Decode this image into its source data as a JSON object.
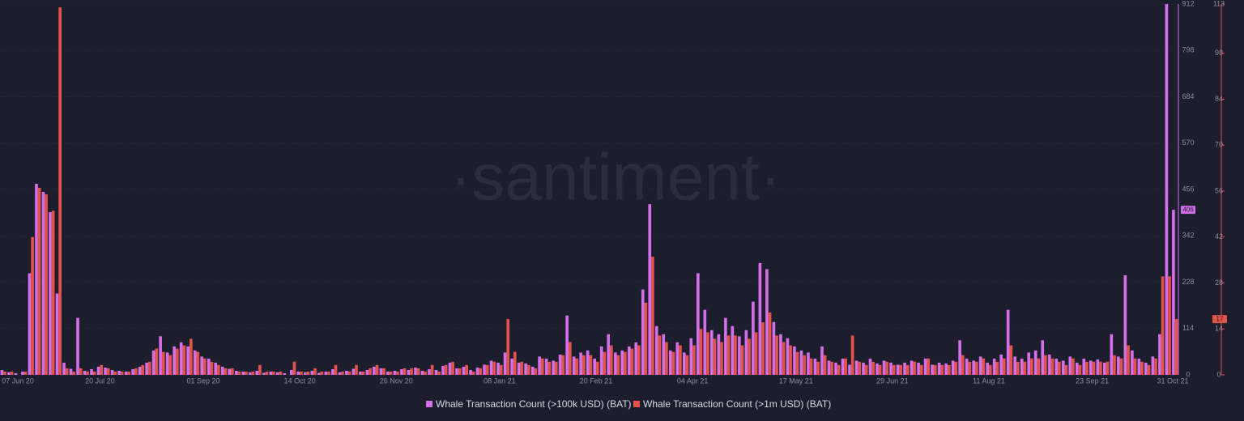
{
  "chart_data": {
    "type": "bar",
    "watermark": "·santiment·",
    "categories": [
      "07 Jun 20",
      null,
      null,
      null,
      null,
      null,
      null,
      null,
      null,
      null,
      null,
      null,
      null,
      null,
      "20 Jul 20",
      null,
      null,
      null,
      null,
      null,
      null,
      null,
      null,
      null,
      null,
      null,
      null,
      null,
      null,
      "01 Sep 20",
      null,
      null,
      null,
      null,
      null,
      null,
      null,
      null,
      null,
      null,
      null,
      null,
      null,
      "14 Oct 20",
      null,
      null,
      null,
      null,
      null,
      null,
      null,
      null,
      null,
      null,
      null,
      null,
      null,
      "26 Nov 20",
      null,
      null,
      null,
      null,
      null,
      null,
      null,
      null,
      null,
      null,
      null,
      null,
      null,
      null,
      "08 Jan 21",
      null,
      null,
      null,
      null,
      null,
      null,
      null,
      null,
      null,
      null,
      null,
      null,
      null,
      "20 Feb 21",
      null,
      null,
      null,
      null,
      null,
      null,
      null,
      null,
      null,
      null,
      null,
      null,
      null,
      "04 Apr 21",
      null,
      null,
      null,
      null,
      null,
      null,
      null,
      null,
      null,
      null,
      null,
      null,
      null,
      null,
      "17 May 21",
      null,
      null,
      null,
      null,
      null,
      null,
      null,
      null,
      null,
      null,
      null,
      null,
      null,
      "29 Jun 21",
      null,
      null,
      null,
      null,
      null,
      null,
      null,
      null,
      null,
      null,
      null,
      null,
      null,
      "11 Aug 21",
      null,
      null,
      null,
      null,
      null,
      null,
      null,
      null,
      null,
      null,
      null,
      null,
      null,
      null,
      "23 Sep 21",
      null,
      null,
      null,
      null,
      null,
      null,
      null,
      null,
      null,
      null,
      null,
      "31 Oct 21"
    ],
    "series": [
      {
        "name": "Whale Transaction Count (>100k USD) (BAT)",
        "color": "#d36fe8",
        "values": [
          12,
          6,
          4,
          8,
          250,
          470,
          450,
          400,
          200,
          30,
          15,
          140,
          10,
          14,
          20,
          18,
          12,
          10,
          8,
          14,
          20,
          30,
          60,
          95,
          55,
          70,
          80,
          70,
          60,
          45,
          40,
          30,
          20,
          15,
          10,
          8,
          6,
          10,
          5,
          8,
          6,
          4,
          12,
          8,
          6,
          10,
          5,
          8,
          14,
          6,
          10,
          15,
          8,
          12,
          20,
          16,
          8,
          10,
          14,
          12,
          18,
          10,
          14,
          12,
          22,
          30,
          16,
          20,
          12,
          18,
          25,
          35,
          30,
          55,
          40,
          30,
          28,
          20,
          45,
          40,
          35,
          50,
          146,
          45,
          55,
          60,
          40,
          70,
          100,
          55,
          60,
          70,
          80,
          210,
          420,
          120,
          100,
          60,
          80,
          55,
          90,
          250,
          160,
          110,
          100,
          140,
          120,
          95,
          110,
          180,
          275,
          260,
          130,
          100,
          90,
          70,
          60,
          55,
          40,
          70,
          35,
          30,
          40,
          25,
          35,
          30,
          40,
          28,
          35,
          30,
          25,
          30,
          35,
          30,
          40,
          25,
          30,
          28,
          35,
          85,
          40,
          35,
          45,
          30,
          40,
          50,
          160,
          45,
          40,
          55,
          60,
          85,
          50,
          40,
          35,
          45,
          30,
          40,
          35,
          38,
          30,
          100,
          45,
          245,
          60,
          40,
          30,
          45,
          100,
          912,
          406
        ]
      },
      {
        "name": "Whale Transaction Count (>1m USD) (BAT)",
        "color": "#e2534a",
        "axis": "y2",
        "values": [
          1,
          1,
          0,
          1,
          42,
          57,
          55,
          50,
          112,
          2,
          1,
          2,
          1,
          1,
          3,
          2,
          1,
          1,
          1,
          2,
          3,
          4,
          8,
          7,
          6,
          8,
          9,
          11,
          7,
          5,
          4,
          3,
          2,
          2,
          1,
          1,
          1,
          3,
          1,
          1,
          1,
          0,
          4,
          1,
          1,
          2,
          1,
          1,
          3,
          1,
          1,
          3,
          1,
          2,
          3,
          2,
          1,
          1,
          2,
          2,
          2,
          1,
          3,
          1,
          3,
          4,
          2,
          3,
          1,
          2,
          3,
          4,
          3,
          17,
          7,
          4,
          3,
          2,
          5,
          4,
          4,
          6,
          10,
          5,
          6,
          6,
          4,
          7,
          9,
          6,
          7,
          8,
          9,
          22,
          36,
          12,
          10,
          7,
          9,
          6,
          9,
          14,
          13,
          11,
          10,
          12,
          12,
          9,
          11,
          13,
          16,
          19,
          12,
          10,
          9,
          7,
          6,
          5,
          4,
          6,
          4,
          3,
          5,
          12,
          4,
          3,
          4,
          3,
          4,
          3,
          3,
          3,
          4,
          3,
          5,
          3,
          3,
          3,
          4,
          6,
          4,
          4,
          5,
          3,
          4,
          5,
          9,
          4,
          4,
          5,
          5,
          6,
          5,
          4,
          3,
          5,
          3,
          4,
          4,
          4,
          4,
          6,
          5,
          9,
          5,
          4,
          3,
          5,
          30,
          30,
          17
        ]
      }
    ],
    "ylim": [
      0,
      912
    ],
    "yticks": [
      0,
      114,
      228,
      342,
      456,
      570,
      684,
      798,
      912
    ],
    "y2lim": [
      0,
      113
    ],
    "y2ticks": [
      0,
      14,
      28,
      42,
      56,
      70,
      84,
      98,
      113
    ],
    "grid": true
  }
}
